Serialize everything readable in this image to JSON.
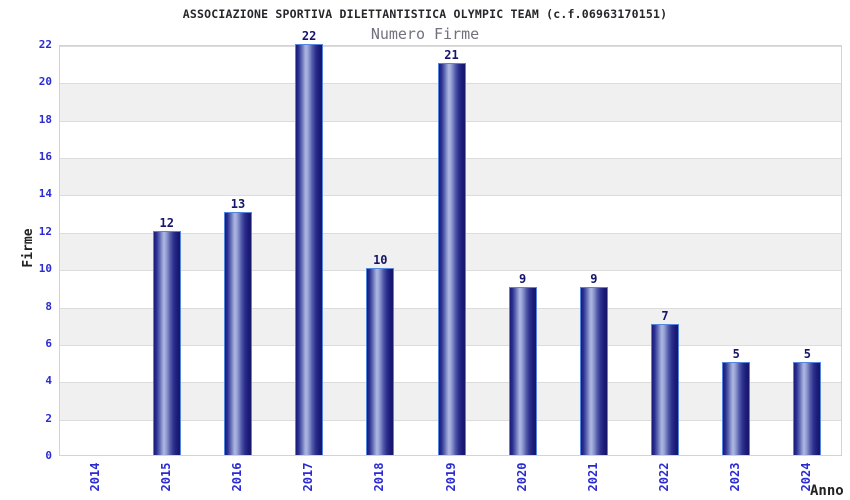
{
  "header": {
    "title": "ASSOCIAZIONE SPORTIVA DILETTANTISTICA OLYMPIC TEAM (c.f.06963170151)",
    "subtitle": "Numero Firme"
  },
  "chart_data": {
    "type": "bar",
    "title": "ASSOCIAZIONE SPORTIVA DILETTANTISTICA OLYMPIC TEAM (c.f.06963170151)",
    "subtitle": "Numero Firme",
    "categories": [
      "2014",
      "2015",
      "2016",
      "2017",
      "2018",
      "2019",
      "2020",
      "2021",
      "2022",
      "2023",
      "2024"
    ],
    "values": [
      0,
      12,
      13,
      22,
      10,
      21,
      9,
      9,
      7,
      5,
      5
    ],
    "xlabel": "Anno",
    "ylabel": "Firme",
    "ylim": [
      0,
      22
    ],
    "yticks": [
      0,
      2,
      4,
      6,
      8,
      10,
      12,
      14,
      16,
      18,
      20,
      22
    ],
    "grid": "horizontal-every-2",
    "bands": "alternating-gray-every-2",
    "legend": "none",
    "value_labels": "above-bars, hidden for zero values",
    "colors": {
      "tick_label": "#2b2bd2",
      "value_label": "#15156b",
      "title": "#26262b",
      "subtitle": "#72727e",
      "axis_title": "#222222",
      "bar_dark": "#1b1b78",
      "bar_mid": "#545eab",
      "bar_light": "#a9b2de",
      "bar_border": "#5585dd",
      "band_gray": "#f0f0f0",
      "gridline": "#dcdcdc",
      "plot_border": "#d3d3d3",
      "background": "#ffffff"
    }
  }
}
